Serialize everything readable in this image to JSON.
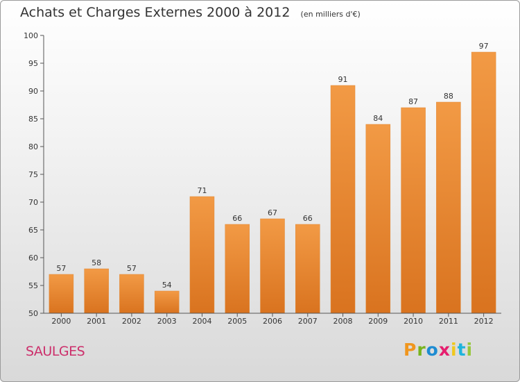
{
  "chart_data": {
    "type": "bar",
    "title": "Achats et Charges Externes 2000 à 2012",
    "subtitle": "(en milliers d'€)",
    "categories": [
      "2000",
      "2001",
      "2002",
      "2003",
      "2004",
      "2005",
      "2006",
      "2007",
      "2008",
      "2009",
      "2010",
      "2011",
      "2012"
    ],
    "values": [
      57,
      58,
      57,
      54,
      71,
      66,
      67,
      66,
      91,
      84,
      87,
      88,
      97
    ],
    "ylim": [
      50,
      100
    ],
    "yticks": [
      50,
      55,
      60,
      65,
      70,
      75,
      80,
      85,
      90,
      95,
      100
    ],
    "grid": false,
    "legend": "none",
    "bar_color": "#f29a45",
    "bar_color_dark": "#d9731f"
  },
  "footer": {
    "commune": "SAULGES",
    "logo_letters": [
      "P",
      "r",
      "o",
      "x",
      "i",
      "t",
      "i"
    ]
  },
  "colors": {
    "commune_text": "#cc2f6b",
    "title_text": "#333333"
  }
}
